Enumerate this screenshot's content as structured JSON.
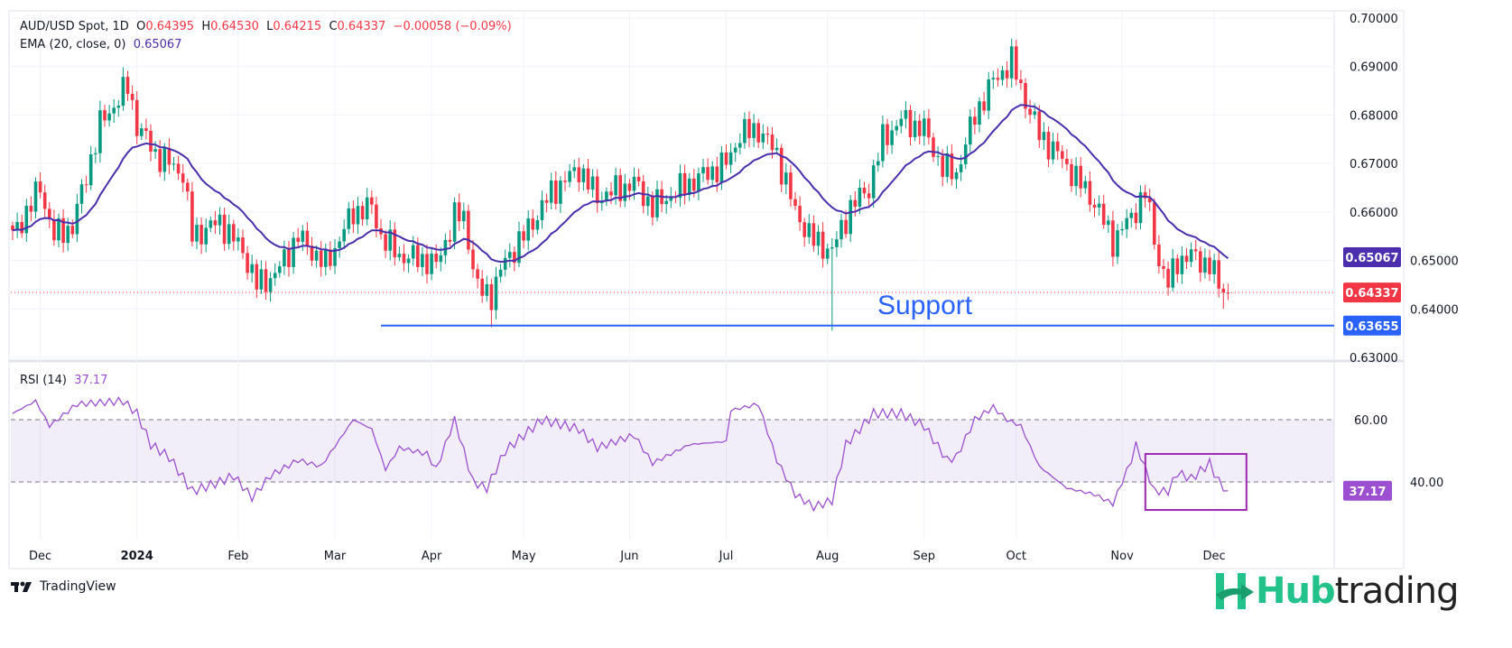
{
  "header": {
    "symbol": "AUD/USD Spot, 1D",
    "o_label": "O",
    "o": "0.64395",
    "h_label": "H",
    "h": "0.64530",
    "l_label": "L",
    "l": "0.64215",
    "c_label": "C",
    "c": "0.64337",
    "change": "−0.00058 (−0.09%)"
  },
  "ema_legend": {
    "label": "EMA (20, close, 0)",
    "value": "0.65067"
  },
  "rsi_legend": {
    "label": "RSI (14)",
    "value": "37.17"
  },
  "annotation": {
    "support_text": "Support"
  },
  "branding": {
    "tradingview": "TradingView",
    "hub_a": "Hub",
    "hub_b": "trading"
  },
  "colors": {
    "up": "#089981",
    "down": "#f23645",
    "ema": "#4a2ead",
    "rsi": "#9c4fd1",
    "support": "#2962ff",
    "last": "#f23645"
  },
  "chart_data": {
    "type": "candlestick",
    "title": "AUD/USD Spot, 1D",
    "price_axis": {
      "range": [
        0.63,
        0.7
      ],
      "ticks": [
        "0.70000",
        "0.69000",
        "0.68000",
        "0.67000",
        "0.66000",
        "0.65000",
        "0.64000",
        "0.63000"
      ]
    },
    "labels": {
      "ema": "0.65067",
      "last": "0.64337",
      "support": "0.63655"
    },
    "support_level": 0.63655,
    "support_start_day": 80,
    "last_close": 0.64337,
    "time_ticks": [
      {
        "day": 6,
        "label": "Dec"
      },
      {
        "day": 27,
        "label": "2024"
      },
      {
        "day": 49,
        "label": "Feb"
      },
      {
        "day": 70,
        "label": "Mar"
      },
      {
        "day": 91,
        "label": "Apr"
      },
      {
        "day": 111,
        "label": "May"
      },
      {
        "day": 134,
        "label": "Jun"
      },
      {
        "day": 155,
        "label": "Jul"
      },
      {
        "day": 177,
        "label": "Aug"
      },
      {
        "day": 198,
        "label": "Sep"
      },
      {
        "day": 218,
        "label": "Oct"
      },
      {
        "day": 241,
        "label": "Nov"
      },
      {
        "day": 261,
        "label": "Dec"
      }
    ],
    "close_anchors": [
      [
        0,
        0.655
      ],
      [
        6,
        0.665
      ],
      [
        9,
        0.655
      ],
      [
        13,
        0.657
      ],
      [
        19,
        0.678
      ],
      [
        25,
        0.686
      ],
      [
        27,
        0.678
      ],
      [
        31,
        0.672
      ],
      [
        37,
        0.668
      ],
      [
        39,
        0.655
      ],
      [
        45,
        0.658
      ],
      [
        50,
        0.652
      ],
      [
        53,
        0.645
      ],
      [
        57,
        0.647
      ],
      [
        62,
        0.655
      ],
      [
        68,
        0.649
      ],
      [
        74,
        0.66
      ],
      [
        78,
        0.661
      ],
      [
        80,
        0.655
      ],
      [
        84,
        0.651
      ],
      [
        90,
        0.65
      ],
      [
        92,
        0.649
      ],
      [
        96,
        0.659
      ],
      [
        98,
        0.659
      ],
      [
        101,
        0.644
      ],
      [
        104,
        0.643
      ],
      [
        107,
        0.65
      ],
      [
        111,
        0.655
      ],
      [
        117,
        0.664
      ],
      [
        123,
        0.669
      ],
      [
        127,
        0.663
      ],
      [
        135,
        0.666
      ],
      [
        139,
        0.661
      ],
      [
        147,
        0.666
      ],
      [
        155,
        0.67
      ],
      [
        158,
        0.676
      ],
      [
        162,
        0.677
      ],
      [
        166,
        0.672
      ],
      [
        170,
        0.66
      ],
      [
        174,
        0.654
      ],
      [
        178,
        0.652
      ],
      [
        182,
        0.661
      ],
      [
        186,
        0.665
      ],
      [
        189,
        0.675
      ],
      [
        193,
        0.679
      ],
      [
        198,
        0.677
      ],
      [
        202,
        0.669
      ],
      [
        205,
        0.668
      ],
      [
        209,
        0.68
      ],
      [
        213,
        0.687
      ],
      [
        217,
        0.691
      ],
      [
        220,
        0.683
      ],
      [
        223,
        0.676
      ],
      [
        227,
        0.672
      ],
      [
        231,
        0.667
      ],
      [
        235,
        0.662
      ],
      [
        239,
        0.654
      ],
      [
        243,
        0.659
      ],
      [
        246,
        0.664
      ],
      [
        249,
        0.65
      ],
      [
        251,
        0.645
      ],
      [
        253,
        0.65
      ],
      [
        256,
        0.651
      ],
      [
        260,
        0.649
      ],
      [
        262,
        0.645
      ],
      [
        264,
        0.64337
      ]
    ],
    "wick_extremes": [
      [
        104,
        0.6362
      ],
      [
        178,
        0.6355
      ],
      [
        218,
        0.6942
      ],
      [
        263,
        0.64
      ]
    ],
    "rsi": {
      "range": [
        20,
        70
      ],
      "levels": [
        60,
        40
      ],
      "tick_labels": [
        "60.00",
        "40.00"
      ],
      "anchors": [
        [
          0,
          62
        ],
        [
          5,
          66
        ],
        [
          8,
          58
        ],
        [
          14,
          65
        ],
        [
          24,
          66
        ],
        [
          27,
          62
        ],
        [
          30,
          52
        ],
        [
          34,
          48
        ],
        [
          39,
          37
        ],
        [
          45,
          40
        ],
        [
          48,
          42
        ],
        [
          52,
          35
        ],
        [
          56,
          42
        ],
        [
          62,
          47
        ],
        [
          67,
          45
        ],
        [
          74,
          60
        ],
        [
          78,
          57
        ],
        [
          81,
          44
        ],
        [
          84,
          51
        ],
        [
          90,
          49
        ],
        [
          92,
          44
        ],
        [
          96,
          60
        ],
        [
          100,
          40
        ],
        [
          103,
          38
        ],
        [
          107,
          50
        ],
        [
          115,
          60
        ],
        [
          123,
          57
        ],
        [
          127,
          51
        ],
        [
          135,
          55
        ],
        [
          139,
          46
        ],
        [
          147,
          52
        ],
        [
          155,
          53
        ],
        [
          156,
          63
        ],
        [
          162,
          65
        ],
        [
          166,
          47
        ],
        [
          170,
          36
        ],
        [
          174,
          32
        ],
        [
          178,
          34
        ],
        [
          181,
          52
        ],
        [
          187,
          62
        ],
        [
          193,
          62
        ],
        [
          198,
          58
        ],
        [
          203,
          47
        ],
        [
          205,
          48
        ],
        [
          209,
          60
        ],
        [
          213,
          64
        ],
        [
          216,
          60
        ],
        [
          219,
          58
        ],
        [
          223,
          45
        ],
        [
          229,
          38
        ],
        [
          235,
          36
        ],
        [
          239,
          33
        ],
        [
          243,
          47
        ],
        [
          244,
          52
        ],
        [
          248,
          37
        ],
        [
          251,
          37
        ],
        [
          253,
          43
        ],
        [
          256,
          41
        ],
        [
          260,
          46
        ],
        [
          262,
          40
        ],
        [
          264,
          37.17
        ]
      ],
      "highlight_box_days": [
        248,
        268
      ]
    }
  }
}
